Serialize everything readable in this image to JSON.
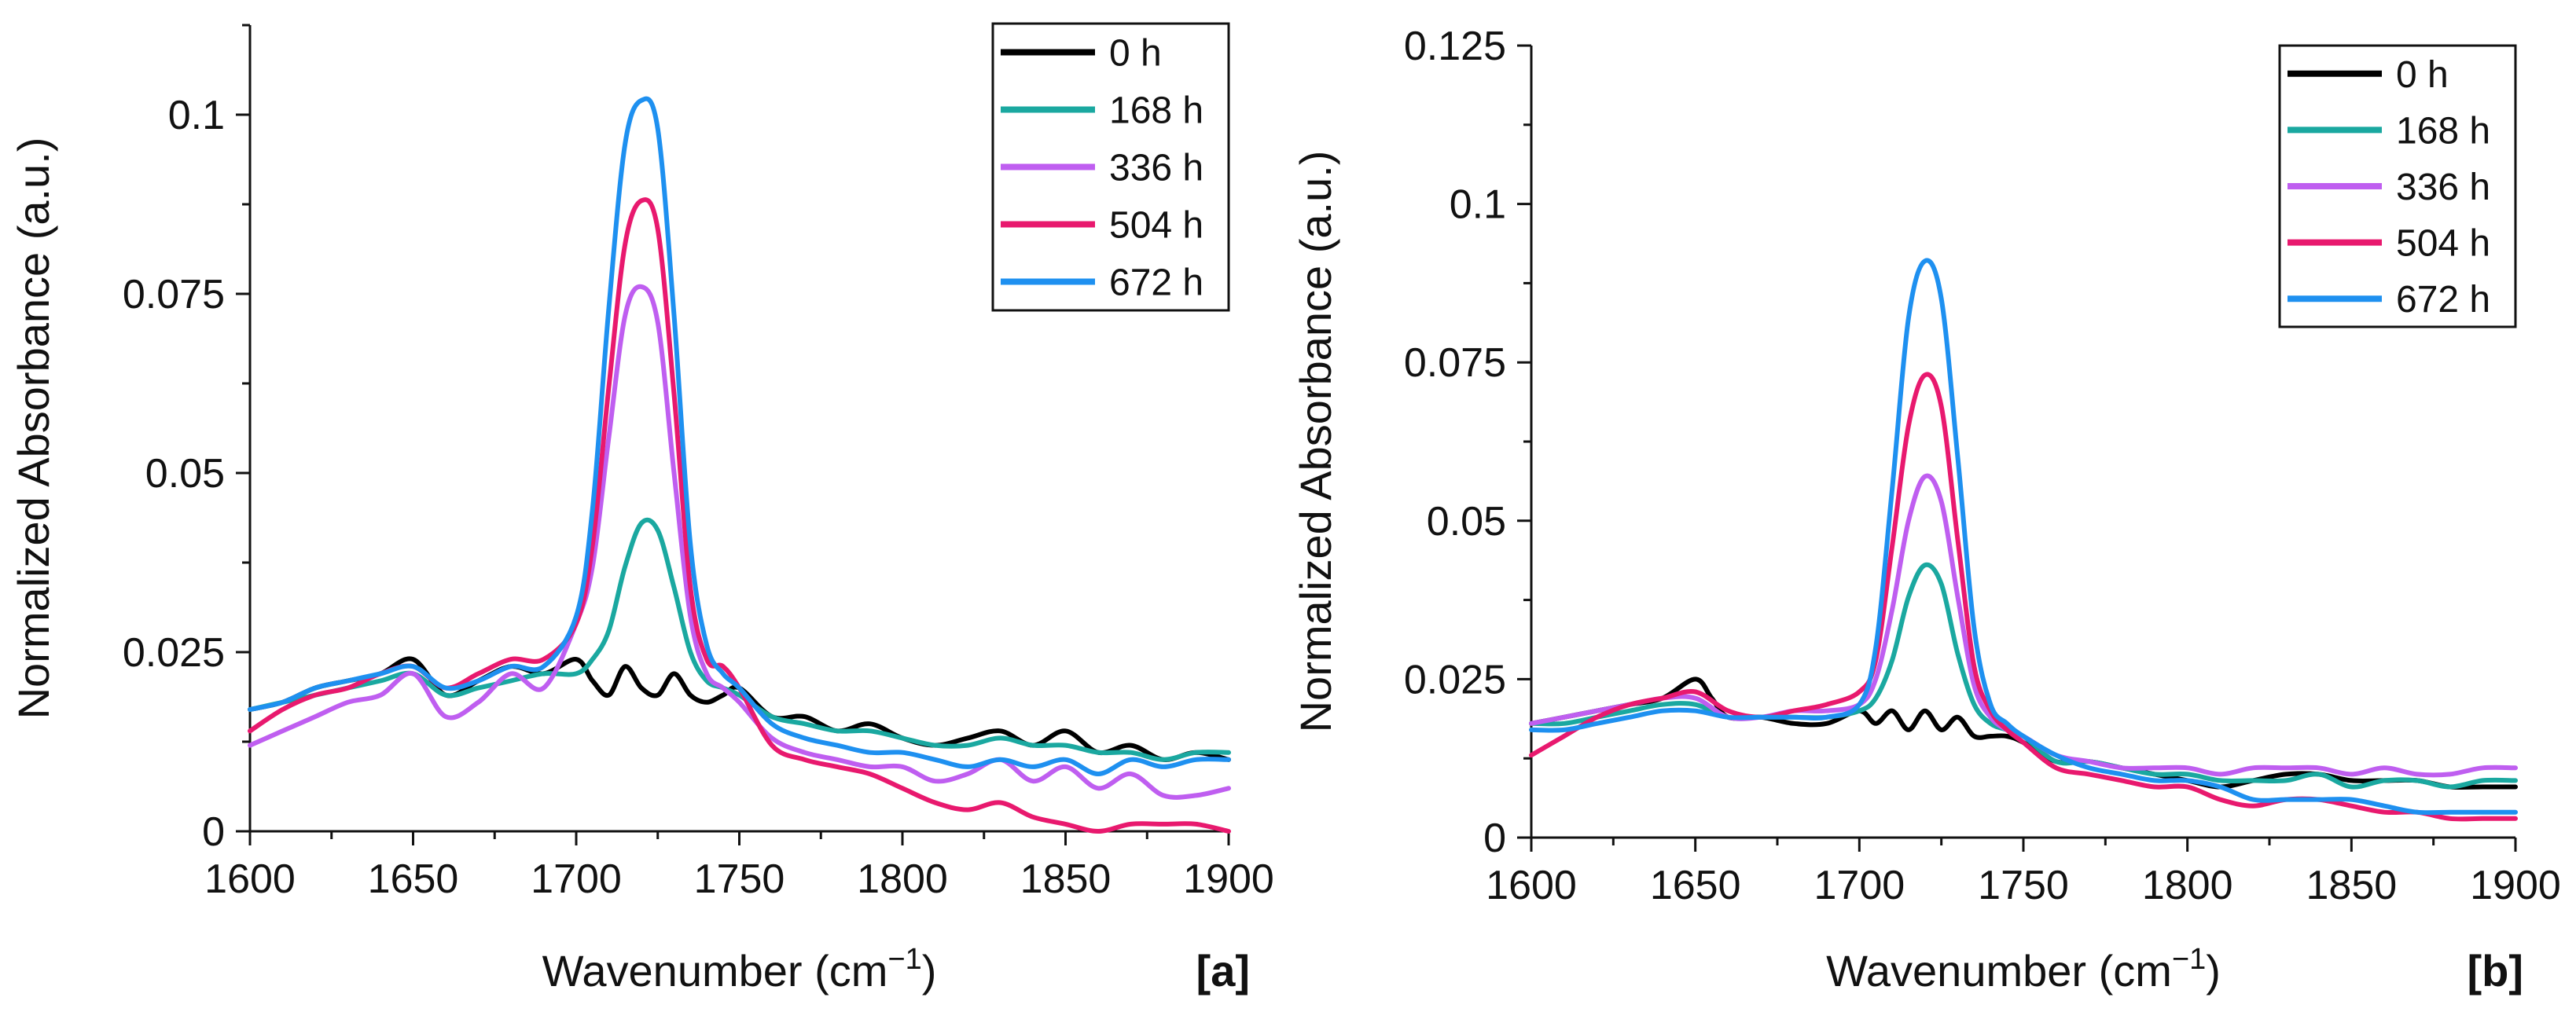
{
  "chart_data": [
    {
      "panel": "[a]",
      "type": "line",
      "xlabel": "Wavenumber (cm",
      "xlabel_sup": "−1",
      "xlabel_close": ")",
      "ylabel": "Normalized Absorbance (a.u.)",
      "xlim": [
        1600,
        1900
      ],
      "ylim": [
        0,
        0.1125
      ],
      "xticks": [
        1600,
        1650,
        1700,
        1750,
        1800,
        1850,
        1900
      ],
      "yticks": [
        0,
        0.025,
        0.05,
        0.075,
        0.1
      ],
      "ytick_labels": [
        "0",
        "0.025",
        "0.05",
        "0.075",
        "0.1"
      ],
      "xtick_labels": [
        "1600",
        "1650",
        "1700",
        "1750",
        "1800",
        "1850",
        "1900"
      ],
      "legend_position": "top-right",
      "series": [
        {
          "name": "0 h",
          "color": "#000000",
          "x": [
            1600,
            1610,
            1620,
            1630,
            1640,
            1650,
            1660,
            1670,
            1680,
            1690,
            1700,
            1705,
            1710,
            1715,
            1720,
            1725,
            1730,
            1735,
            1740,
            1745,
            1750,
            1760,
            1770,
            1780,
            1790,
            1800,
            1810,
            1820,
            1830,
            1840,
            1850,
            1860,
            1870,
            1880,
            1890,
            1900
          ],
          "y": [
            0.017,
            0.018,
            0.02,
            0.021,
            0.022,
            0.024,
            0.019,
            0.021,
            0.023,
            0.022,
            0.024,
            0.021,
            0.019,
            0.023,
            0.02,
            0.019,
            0.022,
            0.019,
            0.018,
            0.019,
            0.02,
            0.016,
            0.016,
            0.014,
            0.015,
            0.013,
            0.012,
            0.013,
            0.014,
            0.012,
            0.014,
            0.011,
            0.012,
            0.01,
            0.011,
            0.01
          ]
        },
        {
          "name": "168 h",
          "color": "#1aa8a0",
          "x": [
            1600,
            1610,
            1620,
            1630,
            1640,
            1650,
            1660,
            1670,
            1680,
            1690,
            1700,
            1705,
            1710,
            1715,
            1720,
            1725,
            1730,
            1735,
            1740,
            1745,
            1750,
            1760,
            1770,
            1780,
            1790,
            1800,
            1810,
            1820,
            1830,
            1840,
            1850,
            1860,
            1870,
            1880,
            1890,
            1900
          ],
          "y": [
            0.017,
            0.018,
            0.019,
            0.02,
            0.021,
            0.022,
            0.019,
            0.02,
            0.021,
            0.022,
            0.022,
            0.024,
            0.028,
            0.037,
            0.043,
            0.042,
            0.034,
            0.025,
            0.021,
            0.02,
            0.019,
            0.016,
            0.015,
            0.014,
            0.014,
            0.013,
            0.012,
            0.012,
            0.013,
            0.012,
            0.012,
            0.011,
            0.011,
            0.01,
            0.011,
            0.011
          ]
        },
        {
          "name": "336 h",
          "color": "#bf5ef0",
          "x": [
            1600,
            1610,
            1620,
            1630,
            1640,
            1650,
            1660,
            1670,
            1680,
            1690,
            1700,
            1705,
            1710,
            1715,
            1720,
            1725,
            1730,
            1735,
            1740,
            1745,
            1750,
            1760,
            1770,
            1780,
            1790,
            1800,
            1810,
            1820,
            1830,
            1840,
            1850,
            1860,
            1870,
            1880,
            1890,
            1900
          ],
          "y": [
            0.012,
            0.014,
            0.016,
            0.018,
            0.019,
            0.022,
            0.016,
            0.018,
            0.022,
            0.02,
            0.029,
            0.037,
            0.055,
            0.072,
            0.076,
            0.071,
            0.05,
            0.03,
            0.022,
            0.02,
            0.018,
            0.013,
            0.011,
            0.01,
            0.009,
            0.009,
            0.007,
            0.008,
            0.01,
            0.007,
            0.009,
            0.006,
            0.008,
            0.005,
            0.005,
            0.006
          ]
        },
        {
          "name": "504 h",
          "color": "#e8196e",
          "x": [
            1600,
            1610,
            1620,
            1630,
            1640,
            1650,
            1660,
            1670,
            1680,
            1690,
            1700,
            1705,
            1710,
            1715,
            1720,
            1725,
            1730,
            1735,
            1740,
            1745,
            1750,
            1760,
            1770,
            1780,
            1790,
            1800,
            1810,
            1820,
            1830,
            1840,
            1850,
            1860,
            1870,
            1880,
            1890,
            1900
          ],
          "y": [
            0.014,
            0.017,
            0.019,
            0.02,
            0.022,
            0.023,
            0.02,
            0.022,
            0.024,
            0.024,
            0.029,
            0.04,
            0.062,
            0.082,
            0.088,
            0.084,
            0.061,
            0.034,
            0.024,
            0.023,
            0.02,
            0.012,
            0.01,
            0.009,
            0.008,
            0.006,
            0.004,
            0.003,
            0.004,
            0.002,
            0.001,
            0.0,
            0.001,
            0.001,
            0.001,
            0.0
          ]
        },
        {
          "name": "672 h",
          "color": "#1e90f0",
          "x": [
            1600,
            1610,
            1620,
            1630,
            1640,
            1650,
            1660,
            1670,
            1680,
            1690,
            1700,
            1705,
            1710,
            1715,
            1720,
            1725,
            1730,
            1735,
            1740,
            1745,
            1750,
            1760,
            1770,
            1780,
            1790,
            1800,
            1810,
            1820,
            1830,
            1840,
            1850,
            1860,
            1870,
            1880,
            1890,
            1900
          ],
          "y": [
            0.017,
            0.018,
            0.02,
            0.021,
            0.022,
            0.023,
            0.02,
            0.021,
            0.023,
            0.023,
            0.03,
            0.045,
            0.073,
            0.096,
            0.102,
            0.098,
            0.072,
            0.04,
            0.026,
            0.022,
            0.02,
            0.015,
            0.013,
            0.012,
            0.011,
            0.011,
            0.01,
            0.009,
            0.01,
            0.009,
            0.01,
            0.008,
            0.01,
            0.009,
            0.01,
            0.01
          ]
        }
      ]
    },
    {
      "panel": "[b]",
      "type": "line",
      "xlabel": "Wavenumber (cm",
      "xlabel_sup": "−1",
      "xlabel_close": ")",
      "ylabel": "Normalized Absorbance (a.u.)",
      "xlim": [
        1600,
        1900
      ],
      "ylim": [
        0,
        0.125
      ],
      "xticks": [
        1600,
        1650,
        1700,
        1750,
        1800,
        1850,
        1900
      ],
      "yticks": [
        0,
        0.025,
        0.05,
        0.075,
        0.1,
        0.125
      ],
      "ytick_labels": [
        "0",
        "0.025",
        "0.05",
        "0.075",
        "0.1",
        "0.125"
      ],
      "xtick_labels": [
        "1600",
        "1650",
        "1700",
        "1750",
        "1800",
        "1850",
        "1900"
      ],
      "legend_position": "top-right",
      "series": [
        {
          "name": "0 h",
          "color": "#000000",
          "x": [
            1600,
            1610,
            1620,
            1630,
            1640,
            1650,
            1655,
            1660,
            1670,
            1680,
            1690,
            1700,
            1705,
            1710,
            1715,
            1720,
            1725,
            1730,
            1735,
            1740,
            1745,
            1750,
            1760,
            1770,
            1780,
            1790,
            1800,
            1810,
            1820,
            1830,
            1840,
            1850,
            1860,
            1870,
            1880,
            1890,
            1900
          ],
          "y": [
            0.018,
            0.019,
            0.02,
            0.021,
            0.022,
            0.025,
            0.022,
            0.019,
            0.019,
            0.018,
            0.018,
            0.02,
            0.018,
            0.02,
            0.017,
            0.02,
            0.017,
            0.019,
            0.016,
            0.016,
            0.016,
            0.015,
            0.012,
            0.012,
            0.011,
            0.01,
            0.009,
            0.008,
            0.009,
            0.01,
            0.01,
            0.009,
            0.009,
            0.009,
            0.008,
            0.008,
            0.008
          ]
        },
        {
          "name": "168 h",
          "color": "#1aa8a0",
          "x": [
            1600,
            1610,
            1620,
            1630,
            1640,
            1650,
            1660,
            1670,
            1680,
            1690,
            1700,
            1705,
            1710,
            1715,
            1720,
            1725,
            1730,
            1735,
            1740,
            1745,
            1750,
            1760,
            1770,
            1780,
            1790,
            1800,
            1810,
            1820,
            1830,
            1840,
            1850,
            1860,
            1870,
            1880,
            1890,
            1900
          ],
          "y": [
            0.018,
            0.018,
            0.019,
            0.02,
            0.021,
            0.021,
            0.019,
            0.019,
            0.019,
            0.019,
            0.02,
            0.022,
            0.028,
            0.038,
            0.043,
            0.04,
            0.029,
            0.021,
            0.018,
            0.017,
            0.016,
            0.012,
            0.012,
            0.011,
            0.01,
            0.01,
            0.009,
            0.009,
            0.009,
            0.01,
            0.008,
            0.009,
            0.009,
            0.008,
            0.009,
            0.009
          ]
        },
        {
          "name": "336 h",
          "color": "#bf5ef0",
          "x": [
            1600,
            1610,
            1620,
            1630,
            1640,
            1650,
            1660,
            1670,
            1680,
            1690,
            1700,
            1705,
            1710,
            1715,
            1720,
            1725,
            1730,
            1735,
            1740,
            1745,
            1750,
            1760,
            1770,
            1780,
            1790,
            1800,
            1810,
            1820,
            1830,
            1840,
            1850,
            1860,
            1870,
            1880,
            1890,
            1900
          ],
          "y": [
            0.018,
            0.019,
            0.02,
            0.021,
            0.022,
            0.022,
            0.019,
            0.019,
            0.02,
            0.02,
            0.021,
            0.025,
            0.036,
            0.05,
            0.057,
            0.053,
            0.038,
            0.024,
            0.019,
            0.017,
            0.016,
            0.013,
            0.012,
            0.011,
            0.011,
            0.011,
            0.01,
            0.011,
            0.011,
            0.011,
            0.01,
            0.011,
            0.01,
            0.01,
            0.011,
            0.011
          ]
        },
        {
          "name": "504 h",
          "color": "#e8196e",
          "x": [
            1600,
            1610,
            1620,
            1630,
            1640,
            1650,
            1660,
            1670,
            1680,
            1690,
            1700,
            1705,
            1710,
            1715,
            1720,
            1725,
            1730,
            1735,
            1740,
            1745,
            1750,
            1760,
            1770,
            1780,
            1790,
            1800,
            1810,
            1820,
            1830,
            1840,
            1850,
            1860,
            1870,
            1880,
            1890,
            1900
          ],
          "y": [
            0.013,
            0.016,
            0.019,
            0.021,
            0.022,
            0.023,
            0.02,
            0.019,
            0.02,
            0.021,
            0.023,
            0.028,
            0.046,
            0.065,
            0.073,
            0.068,
            0.047,
            0.027,
            0.02,
            0.017,
            0.015,
            0.011,
            0.01,
            0.009,
            0.008,
            0.008,
            0.006,
            0.005,
            0.006,
            0.006,
            0.005,
            0.004,
            0.004,
            0.003,
            0.003,
            0.003
          ]
        },
        {
          "name": "672 h",
          "color": "#1e90f0",
          "x": [
            1600,
            1610,
            1620,
            1630,
            1640,
            1650,
            1660,
            1670,
            1680,
            1690,
            1700,
            1705,
            1710,
            1715,
            1720,
            1725,
            1730,
            1735,
            1740,
            1745,
            1750,
            1760,
            1770,
            1780,
            1790,
            1800,
            1810,
            1820,
            1830,
            1840,
            1850,
            1860,
            1870,
            1880,
            1890,
            1900
          ],
          "y": [
            0.017,
            0.017,
            0.018,
            0.019,
            0.02,
            0.02,
            0.019,
            0.019,
            0.019,
            0.019,
            0.021,
            0.03,
            0.055,
            0.082,
            0.091,
            0.085,
            0.06,
            0.033,
            0.021,
            0.018,
            0.016,
            0.013,
            0.011,
            0.01,
            0.009,
            0.009,
            0.008,
            0.006,
            0.006,
            0.006,
            0.006,
            0.005,
            0.004,
            0.004,
            0.004,
            0.004
          ]
        }
      ]
    }
  ]
}
